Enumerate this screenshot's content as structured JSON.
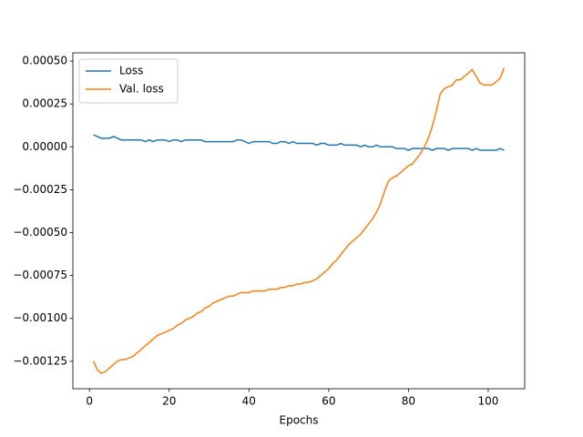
{
  "chart_data": {
    "type": "line",
    "xlabel": "Epochs",
    "legend": "upper left",
    "x": [
      1,
      2,
      3,
      4,
      5,
      6,
      7,
      8,
      9,
      10,
      11,
      12,
      13,
      14,
      15,
      16,
      17,
      18,
      19,
      20,
      21,
      22,
      23,
      24,
      25,
      26,
      27,
      28,
      29,
      30,
      31,
      32,
      33,
      34,
      35,
      36,
      37,
      38,
      39,
      40,
      41,
      42,
      43,
      44,
      45,
      46,
      47,
      48,
      49,
      50,
      51,
      52,
      53,
      54,
      55,
      56,
      57,
      58,
      59,
      60,
      61,
      62,
      63,
      64,
      65,
      66,
      67,
      68,
      69,
      70,
      71,
      72,
      73,
      74,
      75,
      76,
      77,
      78,
      79,
      80,
      81,
      82,
      83,
      84,
      85,
      86,
      87,
      88,
      89,
      90,
      91,
      92,
      93,
      94,
      95,
      96,
      97,
      98,
      99,
      100,
      101,
      102,
      103,
      104
    ],
    "series": [
      {
        "name": "Loss",
        "color": "#1f77b4",
        "values": [
          7e-05,
          6e-05,
          5e-05,
          5e-05,
          5e-05,
          6e-05,
          5e-05,
          4e-05,
          4e-05,
          4e-05,
          4e-05,
          4e-05,
          4e-05,
          3e-05,
          4e-05,
          3e-05,
          4e-05,
          4e-05,
          4e-05,
          3e-05,
          4e-05,
          4e-05,
          3e-05,
          4e-05,
          4e-05,
          4e-05,
          4e-05,
          4e-05,
          3e-05,
          3e-05,
          3e-05,
          3e-05,
          3e-05,
          3e-05,
          3e-05,
          3e-05,
          4e-05,
          4e-05,
          3e-05,
          2e-05,
          3e-05,
          3e-05,
          3e-05,
          3e-05,
          3e-05,
          2e-05,
          2e-05,
          3e-05,
          3e-05,
          2e-05,
          3e-05,
          2e-05,
          2e-05,
          2e-05,
          2e-05,
          2e-05,
          1e-05,
          2e-05,
          2e-05,
          1e-05,
          1e-05,
          1e-05,
          2e-05,
          1e-05,
          1e-05,
          1e-05,
          1e-05,
          0,
          1e-05,
          0,
          0,
          1e-05,
          0,
          0,
          0,
          0,
          -1e-05,
          -1e-05,
          -1e-05,
          -2e-05,
          -1e-05,
          -1e-05,
          -1e-05,
          -1e-05,
          -1e-05,
          -2e-05,
          -1e-05,
          -1e-05,
          -1e-05,
          -2e-05,
          -1e-05,
          -1e-05,
          -1e-05,
          -1e-05,
          -1e-05,
          -2e-05,
          -1e-05,
          -2e-05,
          -2e-05,
          -2e-05,
          -2e-05,
          -2e-05,
          -1e-05,
          -2e-05
        ]
      },
      {
        "name": "Val. loss",
        "color": "#ff7f0e",
        "values": [
          -0.00125,
          -0.0013,
          -0.00132,
          -0.00131,
          -0.00129,
          -0.00127,
          -0.00125,
          -0.00124,
          -0.00124,
          -0.00123,
          -0.00122,
          -0.0012,
          -0.00118,
          -0.00116,
          -0.00114,
          -0.00112,
          -0.0011,
          -0.00109,
          -0.00108,
          -0.00107,
          -0.00106,
          -0.00104,
          -0.00103,
          -0.00101,
          -0.001,
          -0.00099,
          -0.00097,
          -0.00096,
          -0.00094,
          -0.00093,
          -0.00091,
          -0.0009,
          -0.00089,
          -0.00088,
          -0.00087,
          -0.00087,
          -0.00086,
          -0.00085,
          -0.00085,
          -0.00085,
          -0.00084,
          -0.00084,
          -0.00084,
          -0.00084,
          -0.00083,
          -0.00083,
          -0.00083,
          -0.00082,
          -0.00082,
          -0.00081,
          -0.00081,
          -0.0008,
          -0.0008,
          -0.00079,
          -0.00079,
          -0.00078,
          -0.00077,
          -0.00075,
          -0.00073,
          -0.00071,
          -0.00068,
          -0.00066,
          -0.00063,
          -0.0006,
          -0.00057,
          -0.00055,
          -0.00053,
          -0.00051,
          -0.00048,
          -0.00045,
          -0.00042,
          -0.00038,
          -0.00033,
          -0.00026,
          -0.0002,
          -0.00018,
          -0.00017,
          -0.00015,
          -0.00013,
          -0.00011,
          -0.0001,
          -7e-05,
          -4e-05,
          0,
          5e-05,
          0.00012,
          0.00021,
          0.00031,
          0.00034,
          0.00035,
          0.00036,
          0.00039,
          0.00039,
          0.00041,
          0.00043,
          0.00045,
          0.00041,
          0.00037,
          0.00036,
          0.00036,
          0.00036,
          0.00038,
          0.0004,
          0.00046
        ]
      }
    ],
    "xlim": [
      -4.15,
      109.15
    ],
    "xticks": [
      0,
      20,
      40,
      60,
      80,
      100
    ],
    "ylim": [
      -0.00141,
      0.000548
    ],
    "yticks": [
      {
        "value": -0.00125,
        "label": "−0.00125"
      },
      {
        "value": -0.001,
        "label": "−0.00100"
      },
      {
        "value": -0.00075,
        "label": "−0.00075"
      },
      {
        "value": -0.0005,
        "label": "−0.00050"
      },
      {
        "value": -0.00025,
        "label": "−0.00025"
      },
      {
        "value": 0,
        "label": "0.00000"
      },
      {
        "value": 0.00025,
        "label": "0.00025"
      },
      {
        "value": 0.0005,
        "label": "0.00050"
      }
    ]
  }
}
